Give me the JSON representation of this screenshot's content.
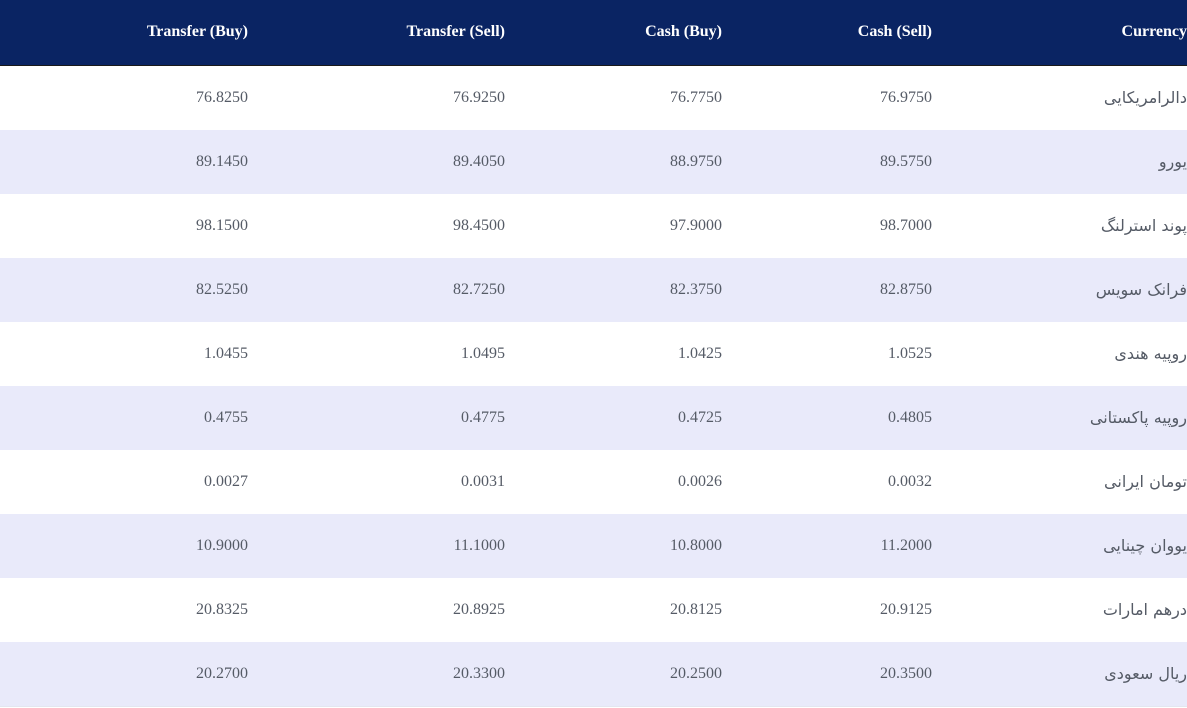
{
  "table": {
    "headers": {
      "transfer_buy": "Transfer (Buy)",
      "transfer_sell": "Transfer (Sell)",
      "cash_buy": "Cash (Buy)",
      "cash_sell": "Cash (Sell)",
      "currency": "Currency"
    },
    "colors": {
      "header_background": "#0a2463",
      "header_text": "#ffffff",
      "stripe_background": "#e9eafa",
      "body_text": "#555b66"
    },
    "rows": [
      {
        "transfer_buy": "76.8250",
        "transfer_sell": "76.9250",
        "cash_buy": "76.7750",
        "cash_sell": "76.9750",
        "currency": "دالرامریکایی"
      },
      {
        "transfer_buy": "89.1450",
        "transfer_sell": "89.4050",
        "cash_buy": "88.9750",
        "cash_sell": "89.5750",
        "currency": "یورو"
      },
      {
        "transfer_buy": "98.1500",
        "transfer_sell": "98.4500",
        "cash_buy": "97.9000",
        "cash_sell": "98.7000",
        "currency": "پوند استرلنگ"
      },
      {
        "transfer_buy": "82.5250",
        "transfer_sell": "82.7250",
        "cash_buy": "82.3750",
        "cash_sell": "82.8750",
        "currency": "فرانک سویس"
      },
      {
        "transfer_buy": "1.0455",
        "transfer_sell": "1.0495",
        "cash_buy": "1.0425",
        "cash_sell": "1.0525",
        "currency": "روپیه هندی"
      },
      {
        "transfer_buy": "0.4755",
        "transfer_sell": "0.4775",
        "cash_buy": "0.4725",
        "cash_sell": "0.4805",
        "currency": "روپیه پاکستانی"
      },
      {
        "transfer_buy": "0.0027",
        "transfer_sell": "0.0031",
        "cash_buy": "0.0026",
        "cash_sell": "0.0032",
        "currency": "تومان ایرانی"
      },
      {
        "transfer_buy": "10.9000",
        "transfer_sell": "11.1000",
        "cash_buy": "10.8000",
        "cash_sell": "11.2000",
        "currency": "یووان چینایی"
      },
      {
        "transfer_buy": "20.8325",
        "transfer_sell": "20.8925",
        "cash_buy": "20.8125",
        "cash_sell": "20.9125",
        "currency": "درهم امارات"
      },
      {
        "transfer_buy": "20.2700",
        "transfer_sell": "20.3300",
        "cash_buy": "20.2500",
        "cash_sell": "20.3500",
        "currency": "ریال سعودی"
      }
    ]
  }
}
